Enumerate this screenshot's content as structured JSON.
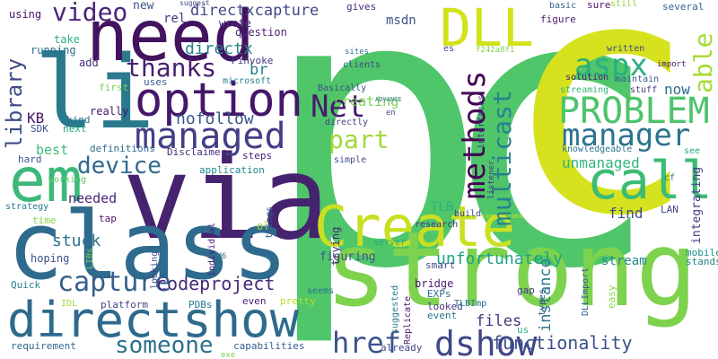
{
  "words": [
    {
      "text": "pc",
      "color": "#4fc66a"
    },
    {
      "text": "c",
      "color": "#d6e21e"
    },
    {
      "text": "strong",
      "color": "#7dd24e"
    },
    {
      "text": "via",
      "color": "#46236f"
    },
    {
      "text": "class",
      "color": "#2e6b8e"
    },
    {
      "text": "li",
      "color": "#2a7a8e"
    },
    {
      "text": "need",
      "color": "#42135e"
    },
    {
      "text": "em",
      "color": "#3cb97a"
    },
    {
      "text": "Create",
      "color": "#c9e021"
    },
    {
      "text": "directshow",
      "color": "#2f6a8d"
    },
    {
      "text": "DLL",
      "color": "#d2e21b"
    },
    {
      "text": "option",
      "color": "#45176b"
    },
    {
      "text": "call",
      "color": "#3cbc75"
    },
    {
      "text": "aspx",
      "color": "#2bad80"
    },
    {
      "text": "PROBLEM",
      "color": "#4ec36b"
    },
    {
      "text": "manager",
      "color": "#2b738e"
    },
    {
      "text": "managed",
      "color": "#433e85"
    },
    {
      "text": "dshow",
      "color": "#3f4789"
    },
    {
      "text": "capture",
      "color": "#355f8d"
    },
    {
      "text": "someone",
      "color": "#2d708e"
    },
    {
      "text": "href",
      "color": "#3b528b"
    },
    {
      "text": "Net",
      "color": "#481b6d"
    },
    {
      "text": "part",
      "color": "#a0da39"
    },
    {
      "text": "thanks",
      "color": "#481f70"
    },
    {
      "text": "video",
      "color": "#482475"
    },
    {
      "text": "device",
      "color": "#31688e"
    },
    {
      "text": "methods",
      "color": "#440154"
    },
    {
      "text": "multicast",
      "color": "#26828e"
    },
    {
      "text": "able",
      "color": "#a5db36"
    },
    {
      "text": "library",
      "color": "#3e4c8a"
    },
    {
      "text": "functionality",
      "color": "#3b518b"
    },
    {
      "text": "codeproject",
      "color": "#472a7a"
    },
    {
      "text": "unfortunately",
      "color": "#1fa287"
    },
    {
      "text": "unmanaged",
      "color": "#32b67a"
    },
    {
      "text": "instance",
      "color": "#2a788e"
    },
    {
      "text": "files",
      "color": "#46337f"
    },
    {
      "text": "find",
      "color": "#3d4d8a"
    },
    {
      "text": "now",
      "color": "#2e6e8e"
    },
    {
      "text": "stuck",
      "color": "#2c728e"
    },
    {
      "text": "directx",
      "color": "#25858e"
    },
    {
      "text": "nofollow",
      "color": "#38588c"
    },
    {
      "text": "directxcapture",
      "color": "#3e4989"
    },
    {
      "text": "br",
      "color": "#277f8e"
    },
    {
      "text": "KB",
      "color": "#481668"
    },
    {
      "text": "creating",
      "color": "#7ad151"
    },
    {
      "text": "needed",
      "color": "#482677"
    },
    {
      "text": "best",
      "color": "#3fbc73"
    },
    {
      "text": "stream",
      "color": "#24878e"
    },
    {
      "text": "integrating",
      "color": "#443a83"
    },
    {
      "text": "TLB",
      "color": "#2db27d"
    },
    {
      "text": "rel",
      "color": "#433d84"
    },
    {
      "text": "new",
      "color": "#3b528b"
    },
    {
      "text": "using",
      "color": "#471063"
    },
    {
      "text": "take",
      "color": "#29af7f"
    },
    {
      "text": "running",
      "color": "#2c728e"
    },
    {
      "text": "add",
      "color": "#472d7b"
    },
    {
      "text": "msdn",
      "color": "#3b528b"
    },
    {
      "text": "gives",
      "color": "#482878"
    },
    {
      "text": "wrote",
      "color": "#463480"
    },
    {
      "text": "question",
      "color": "#482475"
    },
    {
      "text": "Pinvoke",
      "color": "#453581"
    },
    {
      "text": "microsoft",
      "color": "#26818e"
    },
    {
      "text": "uses",
      "color": "#355f8d"
    },
    {
      "text": "first",
      "color": "#7ad151"
    },
    {
      "text": "really",
      "color": "#471164"
    },
    {
      "text": "kind",
      "color": "#2b758e"
    },
    {
      "text": "SDK",
      "color": "#3b528b"
    },
    {
      "text": "next",
      "color": "#21a585"
    },
    {
      "text": "definitions",
      "color": "#2e6e8e"
    },
    {
      "text": "Disclaimer",
      "color": "#472c7a"
    },
    {
      "text": "steps",
      "color": "#482475"
    },
    {
      "text": "hard",
      "color": "#38598c"
    },
    {
      "text": "working",
      "color": "#5ec962"
    },
    {
      "text": "application",
      "color": "#23898e"
    },
    {
      "text": "strategy",
      "color": "#2a788e"
    },
    {
      "text": "time",
      "color": "#86d549"
    },
    {
      "text": "tap",
      "color": "#481467"
    },
    {
      "text": "hoping",
      "color": "#3c4f8a"
    },
    {
      "text": "Quick",
      "color": "#25848e"
    },
    {
      "text": "IDL",
      "color": "#a0da39"
    },
    {
      "text": "platform",
      "color": "#3f4788"
    },
    {
      "text": "PDBs",
      "color": "#2a768e"
    },
    {
      "text": "requirement",
      "color": "#31688e"
    },
    {
      "text": "capabilities",
      "color": "#365c8d"
    },
    {
      "text": "exe",
      "color": "#7ad151"
    },
    {
      "text": "already",
      "color": "#3e4a89"
    },
    {
      "text": "even",
      "color": "#481c6e"
    },
    {
      "text": "pretty",
      "color": "#b5de2b"
    },
    {
      "text": "seems",
      "color": "#2d708e"
    },
    {
      "text": "smart",
      "color": "#3f4788"
    },
    {
      "text": "bridge",
      "color": "#481b6d"
    },
    {
      "text": "EXPs",
      "color": "#2f6c8e"
    },
    {
      "text": "looked",
      "color": "#453781"
    },
    {
      "text": "event",
      "color": "#2c728e"
    },
    {
      "text": "gap",
      "color": "#453882"
    },
    {
      "text": "us",
      "color": "#2fb47c"
    },
    {
      "text": "mobile",
      "color": "#21918c"
    },
    {
      "text": "stands",
      "color": "#26828e"
    },
    {
      "text": "LAN",
      "color": "#3e4a89"
    },
    {
      "text": "cf",
      "color": "#2a788e"
    },
    {
      "text": "see",
      "color": "#22a884"
    },
    {
      "text": "knowledgeable",
      "color": "#2c738e"
    },
    {
      "text": "streaming",
      "color": "#35b779"
    },
    {
      "text": "stuff",
      "color": "#453781"
    },
    {
      "text": "solution",
      "color": "#481a6c"
    },
    {
      "text": "maintain",
      "color": "#38588c"
    },
    {
      "text": "basic",
      "color": "#355e8d"
    },
    {
      "text": "figure",
      "color": "#481a6c"
    },
    {
      "text": "sure",
      "color": "#471365"
    },
    {
      "text": "still",
      "color": "#8fd744"
    },
    {
      "text": "several",
      "color": "#35608d"
    },
    {
      "text": "written",
      "color": "#3f4889"
    },
    {
      "text": "import",
      "color": "#482173"
    },
    {
      "text": "es",
      "color": "#3e4a89"
    },
    {
      "text": "f242a8f1",
      "color": "#7ad151"
    },
    {
      "text": "sites",
      "color": "#2b758e"
    },
    {
      "text": "clients",
      "color": "#3f4788"
    },
    {
      "text": "Basically",
      "color": "#3d4e8a"
    },
    {
      "text": "ADVANCE",
      "color": "#2a788e"
    },
    {
      "text": "directly",
      "color": "#433e85"
    },
    {
      "text": "en",
      "color": "#3e4989"
    },
    {
      "text": "simple",
      "color": "#3f4889"
    },
    {
      "text": "interfaces",
      "color": "#463480"
    },
    {
      "text": "listener",
      "color": "#443983"
    },
    {
      "text": "research",
      "color": "#453581"
    },
    {
      "text": "build",
      "color": "#414487"
    },
    {
      "text": "server",
      "color": "#22a884"
    },
    {
      "text": "trying",
      "color": "#472a7a"
    },
    {
      "text": "figuring",
      "color": "#3a548c"
    },
    {
      "text": "TLBImp",
      "color": "#2d708e"
    },
    {
      "text": "suggested",
      "color": "#287c8e"
    },
    {
      "text": "Replicate",
      "color": "#481668"
    },
    {
      "text": "DLLImport",
      "color": "#355f8d"
    },
    {
      "text": "types",
      "color": "#3b528b"
    },
    {
      "text": "easy",
      "color": "#8fd744"
    },
    {
      "text": "suggestions",
      "color": "#d8e219"
    },
    {
      "text": "individual",
      "color": "#482173"
    },
    {
      "text": "looking",
      "color": "#3e4a89"
    },
    {
      "text": "things",
      "color": "#38598c"
    },
    {
      "text": "ol",
      "color": "#a8db34"
    },
    {
      "text": "WM6",
      "color": "#2a788e"
    },
    {
      "text": "LIBs",
      "color": "#6ccd5a"
    },
    {
      "text": "suggest",
      "color": "#3e4989"
    }
  ]
}
